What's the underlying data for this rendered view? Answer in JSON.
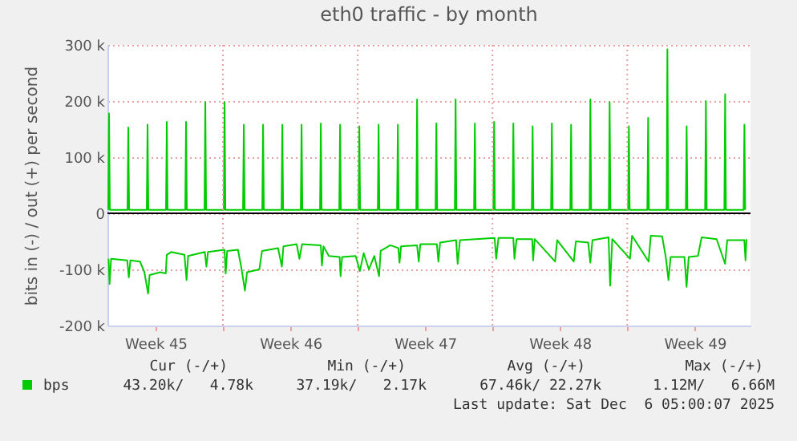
{
  "chart_data": {
    "type": "line",
    "title": "eth0 traffic - by month",
    "ylabel": "bits in (-) / out (+) per second",
    "xlim": [
      "2025-11-03T00:00",
      "2025-12-06T09:36"
    ],
    "ylim": [
      -200000,
      300000
    ],
    "xticks": [
      {
        "value": "2025-11-05T12:00",
        "label": "Week 45"
      },
      {
        "value": "2025-11-09",
        "label": null
      },
      {
        "value": "2025-11-12T12:00",
        "label": "Week 46"
      },
      {
        "value": "2025-11-16",
        "label": null
      },
      {
        "value": "2025-11-19T12:00",
        "label": "Week 47"
      },
      {
        "value": "2025-11-23",
        "label": null
      },
      {
        "value": "2025-11-26T12:00",
        "label": "Week 48"
      },
      {
        "value": "2025-11-30",
        "label": null
      },
      {
        "value": "2025-12-03T12:00",
        "label": "Week 49"
      }
    ],
    "yticks": [
      {
        "value": -200000,
        "label": "-200 k"
      },
      {
        "value": -100000,
        "label": "-100 k"
      },
      {
        "value": 0,
        "label": "0"
      },
      {
        "value": 100000,
        "label": "100 k"
      },
      {
        "value": 200000,
        "label": "200 k"
      },
      {
        "value": 300000,
        "label": "300 k"
      }
    ],
    "grid": true,
    "legend": "bottom",
    "ref_lines": [
      {
        "axis": "y",
        "value": 0,
        "color": "#000000"
      }
    ],
    "series": [
      {
        "name": "bps",
        "color": "#00cc00",
        "x": [
          "2025-11-03T01:00",
          "2025-11-03T02:00",
          "2025-11-03T03:00",
          "2025-11-04T01:00",
          "2025-11-04T02:00",
          "2025-11-04T03:00",
          "2025-11-05T01:00",
          "2025-11-05T02:00",
          "2025-11-05T03:00",
          "2025-11-06T01:00",
          "2025-11-06T02:00",
          "2025-11-06T03:00",
          "2025-11-07T01:00",
          "2025-11-07T02:00",
          "2025-11-07T03:00",
          "2025-11-08T01:00",
          "2025-11-08T02:00",
          "2025-11-08T03:00",
          "2025-11-09T01:00",
          "2025-11-09T02:00",
          "2025-11-09T03:00",
          "2025-11-10T01:00",
          "2025-11-10T02:00",
          "2025-11-10T03:00",
          "2025-11-11T01:00",
          "2025-11-11T02:00",
          "2025-11-11T03:00",
          "2025-11-12T01:00",
          "2025-11-12T02:00",
          "2025-11-12T03:00",
          "2025-11-13T01:00",
          "2025-11-13T02:00",
          "2025-11-13T03:00",
          "2025-11-14T01:00",
          "2025-11-14T02:00",
          "2025-11-14T03:00",
          "2025-11-15T01:00",
          "2025-11-15T02:00",
          "2025-11-15T03:00",
          "2025-11-16T01:00",
          "2025-11-16T02:00",
          "2025-11-16T03:00",
          "2025-11-17T01:00",
          "2025-11-17T02:00",
          "2025-11-17T03:00",
          "2025-11-18T01:00",
          "2025-11-18T02:00",
          "2025-11-18T03:00",
          "2025-11-19T01:00",
          "2025-11-19T02:00",
          "2025-11-19T03:00",
          "2025-11-20T01:00",
          "2025-11-20T02:00",
          "2025-11-20T03:00",
          "2025-11-21T01:00",
          "2025-11-21T02:00",
          "2025-11-21T03:00",
          "2025-11-22T01:00",
          "2025-11-22T02:00",
          "2025-11-22T03:00",
          "2025-11-23T01:00",
          "2025-11-23T02:00",
          "2025-11-23T03:00",
          "2025-11-24T01:00",
          "2025-11-24T02:00",
          "2025-11-24T03:00",
          "2025-11-25T01:00",
          "2025-11-25T02:00",
          "2025-11-25T03:00",
          "2025-11-26T01:00",
          "2025-11-26T02:00",
          "2025-11-26T03:00",
          "2025-11-27T01:00",
          "2025-11-27T02:00",
          "2025-11-27T03:00",
          "2025-11-28T01:00",
          "2025-11-28T02:00",
          "2025-11-28T03:00",
          "2025-11-29T01:00",
          "2025-11-29T02:00",
          "2025-11-29T03:00",
          "2025-11-30T01:00",
          "2025-11-30T02:00",
          "2025-11-30T03:00",
          "2025-12-01T01:00",
          "2025-12-01T02:00",
          "2025-12-01T03:00",
          "2025-12-02T01:00",
          "2025-12-02T02:00",
          "2025-12-02T03:00",
          "2025-12-03T01:00",
          "2025-12-03T02:00",
          "2025-12-03T03:00",
          "2025-12-04T01:00",
          "2025-12-04T02:00",
          "2025-12-04T03:00",
          "2025-12-05T01:00",
          "2025-12-05T02:00",
          "2025-12-05T03:00",
          "2025-12-06T01:00",
          "2025-12-06T02:00",
          "2025-12-06T03:00"
        ],
        "values": [
          6000,
          178000,
          6000,
          6000,
          153000,
          6000,
          6000,
          158000,
          6000,
          6000,
          163000,
          6000,
          6000,
          163000,
          6000,
          6000,
          198000,
          6000,
          6000,
          198000,
          6000,
          6000,
          158000,
          6000,
          6000,
          158000,
          6000,
          6000,
          158000,
          6000,
          6000,
          158000,
          6000,
          6000,
          160000,
          6000,
          6000,
          158000,
          6000,
          6000,
          155000,
          6000,
          6000,
          158000,
          6000,
          6000,
          158000,
          6000,
          6000,
          203000,
          6000,
          6000,
          160000,
          6000,
          6000,
          203000,
          6000,
          6000,
          160000,
          6000,
          6000,
          163000,
          6000,
          6000,
          160000,
          6000,
          6000,
          155000,
          6000,
          6000,
          160000,
          6000,
          6000,
          158000,
          6000,
          6000,
          203000,
          6000,
          6000,
          198000,
          6000,
          6000,
          155000,
          6000,
          6000,
          170000,
          6000,
          6000,
          292000,
          6000,
          6000,
          155000,
          6000,
          6000,
          200000,
          6000,
          6000,
          212000,
          6000,
          6000,
          158000,
          6000
        ]
      },
      {
        "color": "#00cc00",
        "x": [
          "2025-11-03T01:26",
          "2025-11-03T02:38",
          "2025-11-03T04:34",
          "2025-11-04T00:43",
          "2025-11-04T02:38",
          "2025-11-04T04:34",
          "2025-11-04T16:34",
          "2025-11-04T22:05",
          "2025-11-05T02:38",
          "2025-11-05T04:34",
          "2025-11-05T18:00",
          "2025-11-06T00:43",
          "2025-11-06T01:55",
          "2025-11-06T07:26",
          "2025-11-07T00:00",
          "2025-11-07T02:38",
          "2025-11-07T04:34",
          "2025-11-08T01:26",
          "2025-11-08T03:22",
          "2025-11-08T05:17",
          "2025-11-09T01:55",
          "2025-11-09T03:22",
          "2025-11-09T05:17",
          "2025-11-09T18:43",
          "2025-11-09T23:17",
          "2025-11-10T03:22",
          "2025-11-10T06:00",
          "2025-11-10T21:22",
          "2025-11-11T00:43",
          "2025-11-11T20:38",
          "2025-11-12T01:26",
          "2025-11-12T03:22",
          "2025-11-12T19:55",
          "2025-11-12T23:17",
          "2025-11-13T02:38",
          "2025-11-14T01:55",
          "2025-11-14T03:22",
          "2025-11-14T05:17",
          "2025-11-14T12:00",
          "2025-11-15T01:26",
          "2025-11-15T02:38",
          "2025-11-15T04:34",
          "2025-11-15T21:22",
          "2025-11-16T02:38",
          "2025-11-16T07:26",
          "2025-11-16T13:55",
          "2025-11-16T20:38",
          "2025-11-17T02:38",
          "2025-11-17T04:34",
          "2025-11-17T16:34",
          "2025-11-18T02:38",
          "2025-11-18T04:05",
          "2025-11-18T06:00",
          "2025-11-19T01:55",
          "2025-11-19T04:05",
          "2025-11-19T06:00",
          "2025-11-20T02:38",
          "2025-11-20T04:34",
          "2025-11-20T06:43",
          "2025-11-21T02:38",
          "2025-11-21T04:34",
          "2025-11-21T07:26",
          "2025-11-22T03:22",
          "2025-11-23T02:38",
          "2025-11-23T04:34",
          "2025-11-23T07:26",
          "2025-11-24T01:55",
          "2025-11-24T03:22",
          "2025-11-24T06:00",
          "2025-11-25T01:26",
          "2025-11-25T02:38",
          "2025-11-25T04:34",
          "2025-11-26T06:00",
          "2025-11-26T08:38",
          "2025-11-27T05:17",
          "2025-11-27T07:55",
          "2025-11-27T23:17",
          "2025-11-28T01:55",
          "2025-11-28T04:34",
          "2025-11-29T00:43",
          "2025-11-29T02:38",
          "2025-11-29T05:17",
          "2025-11-30T03:22",
          "2025-11-30T06:00",
          "2025-12-01T02:38",
          "2025-12-01T05:17",
          "2025-12-01T19:26",
          "2025-12-02T00:00",
          "2025-12-02T03:22",
          "2025-12-02T06:00",
          "2025-12-02T23:17",
          "2025-12-03T01:55",
          "2025-12-03T04:34",
          "2025-12-03T16:05",
          "2025-12-03T20:38",
          "2025-12-04T15:22",
          "2025-12-05T01:55",
          "2025-12-05T04:34",
          "2025-12-06T01:55",
          "2025-12-06T03:22",
          "2025-12-06T04:34"
        ],
        "values": [
          -81000,
          -126000,
          -81000,
          -84000,
          -114000,
          -84000,
          -86000,
          -105000,
          -143000,
          -110000,
          -105000,
          -107000,
          -74000,
          -69000,
          -74000,
          -119000,
          -76000,
          -69000,
          -95000,
          -69000,
          -65000,
          -107000,
          -67000,
          -65000,
          -100000,
          -138000,
          -105000,
          -100000,
          -67000,
          -62000,
          -95000,
          -59000,
          -55000,
          -81000,
          -55000,
          -57000,
          -93000,
          -59000,
          -76000,
          -78000,
          -112000,
          -78000,
          -76000,
          -103000,
          -71000,
          -100000,
          -76000,
          -112000,
          -67000,
          -57000,
          -62000,
          -88000,
          -59000,
          -57000,
          -86000,
          -55000,
          -55000,
          -86000,
          -52000,
          -48000,
          -90000,
          -48000,
          -46000,
          -44000,
          -81000,
          -44000,
          -44000,
          -81000,
          -46000,
          -46000,
          -84000,
          -46000,
          -86000,
          -48000,
          -86000,
          -50000,
          -52000,
          -88000,
          -48000,
          -43000,
          -129000,
          -46000,
          -81000,
          -40000,
          -86000,
          -40000,
          -41000,
          -78000,
          -119000,
          -78000,
          -78000,
          -131000,
          -78000,
          -76000,
          -43000,
          -46000,
          -90000,
          -48000,
          -48000,
          -84000,
          -46000
        ]
      }
    ],
    "annotations": [
      "Cur (-/+)",
      "Min (-/+)",
      "Avg (-/+)",
      "Max (-/+)",
      "43.20k/   4.78k",
      "37.19k/   2.17k",
      "67.46k/ 22.27k",
      "1.12M/   6.66M",
      "Last update: Sat Dec  6 05:00:07 2025"
    ]
  }
}
